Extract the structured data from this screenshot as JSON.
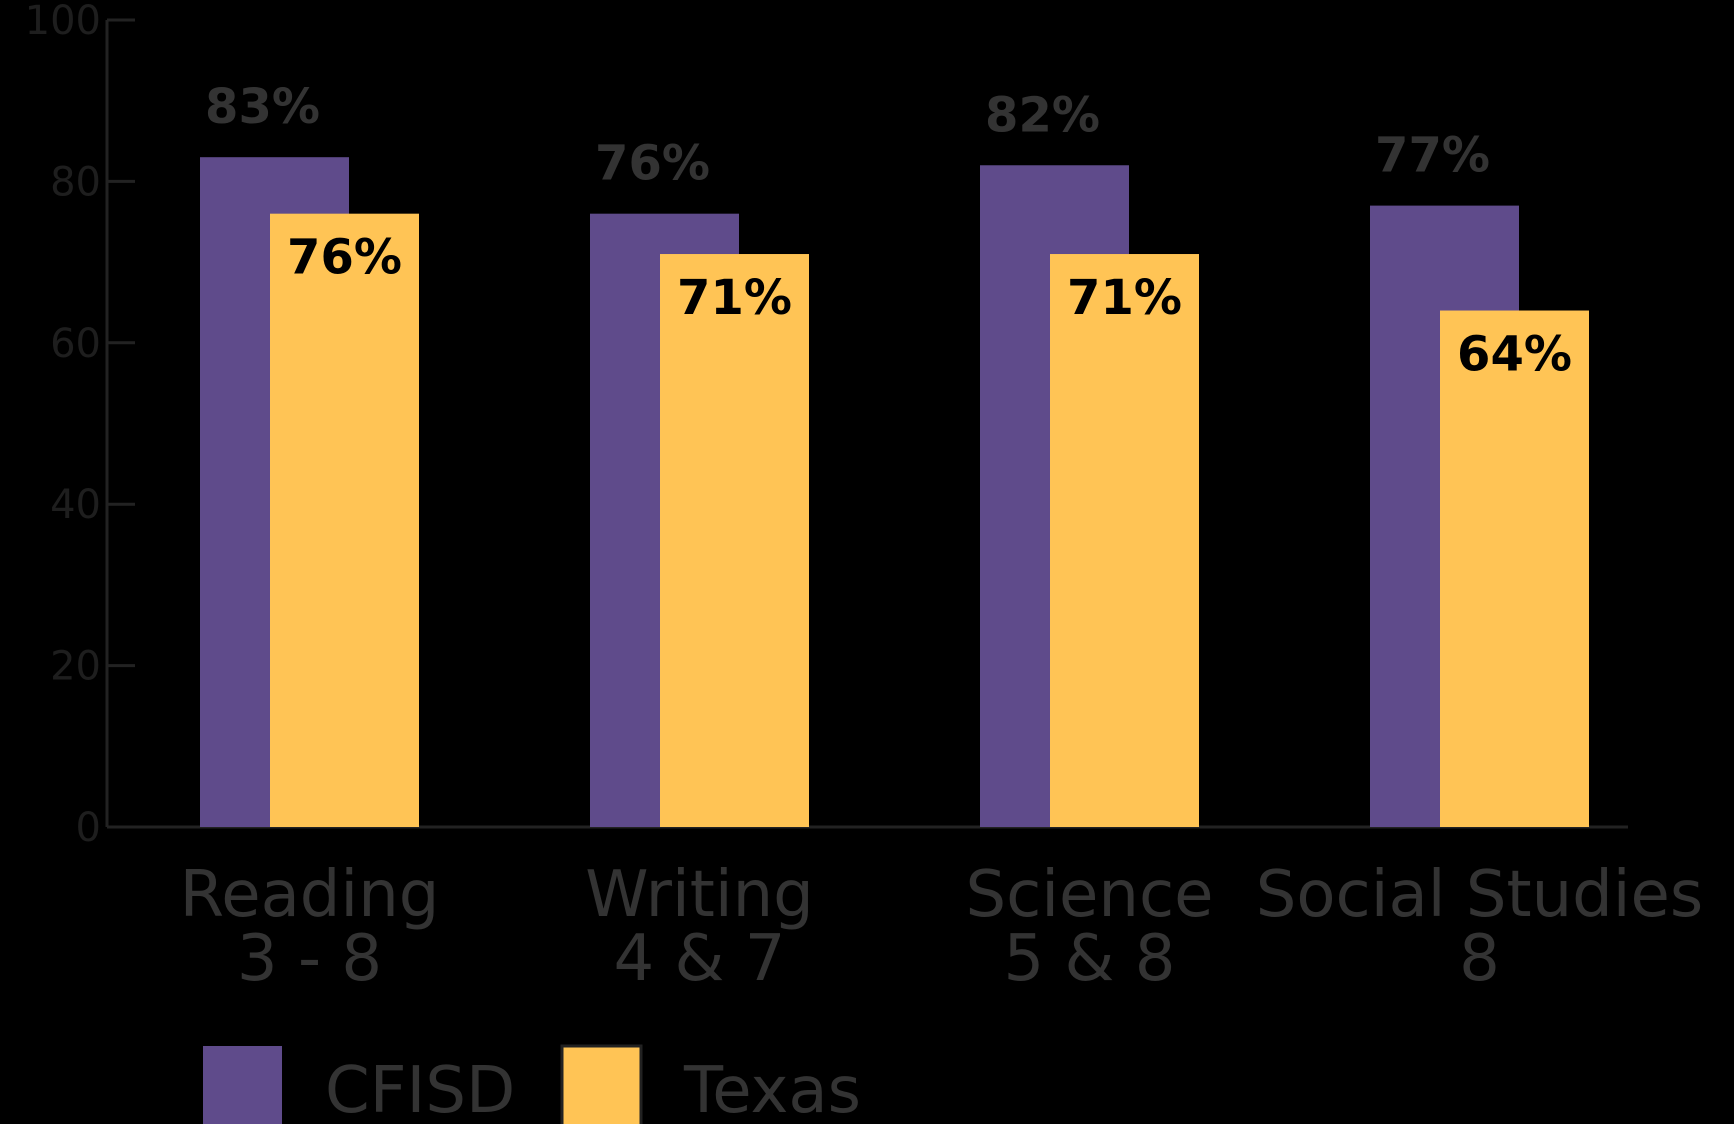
{
  "chart_data": {
    "type": "bar",
    "categories": [
      [
        "Reading",
        "3 - 8"
      ],
      [
        "Writing",
        "4 & 7"
      ],
      [
        "Science",
        "5 & 8"
      ],
      [
        "Social Studies",
        "8"
      ]
    ],
    "series": [
      {
        "name": "CFISD",
        "color": "#5f4b8b",
        "values": [
          83,
          76,
          82,
          77
        ],
        "value_labels": [
          "83%",
          "76%",
          "82%",
          "77%"
        ]
      },
      {
        "name": "Texas",
        "color": "#ffc455",
        "values": [
          76,
          71,
          71,
          64
        ],
        "value_labels": [
          "76%",
          "71%",
          "71%",
          "64%"
        ]
      }
    ],
    "ylim": [
      0,
      100
    ],
    "yticks": [
      0,
      20,
      40,
      60,
      80,
      100
    ],
    "legend": "bottom-left"
  }
}
